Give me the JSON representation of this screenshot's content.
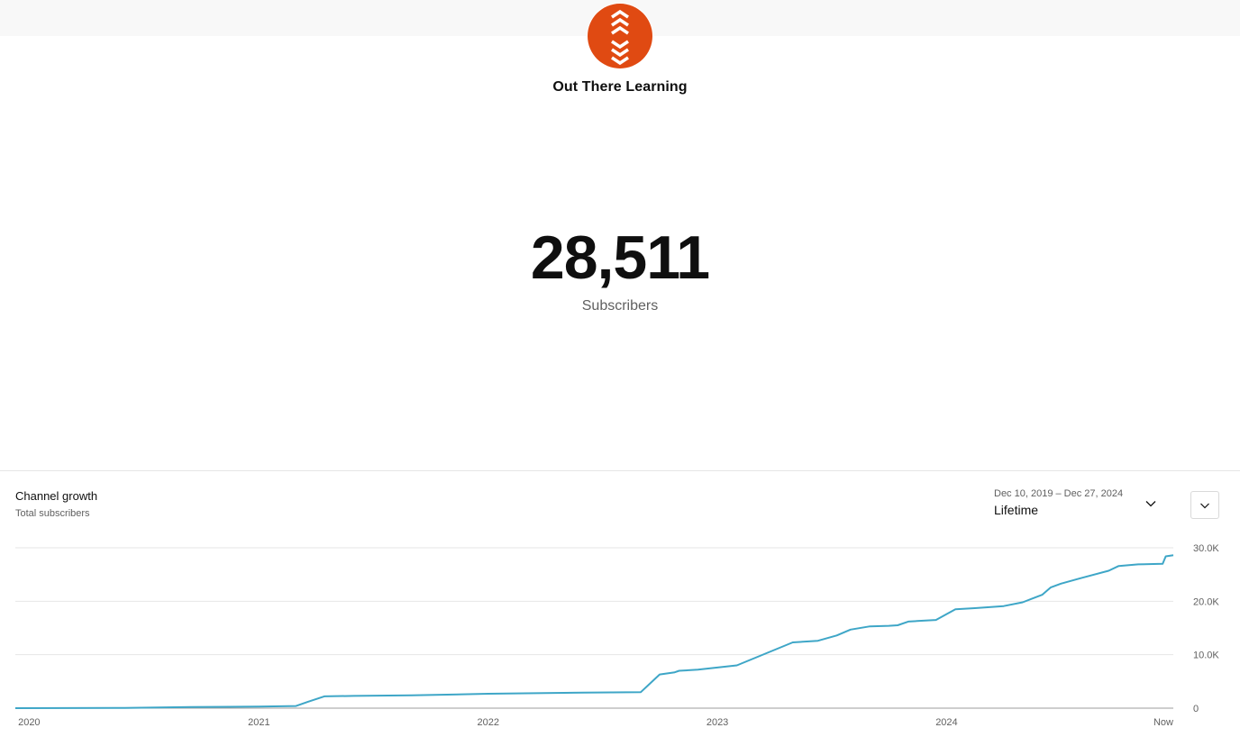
{
  "channel": {
    "name": "Out There Learning",
    "subscriber_count": "28,511",
    "subscriber_label": "Subscribers",
    "avatar_icon": "chevrons-up-down-icon",
    "avatar_color": "#e04a12"
  },
  "growth_card": {
    "title": "Channel growth",
    "subtitle": "Total subscribers",
    "date_range": "Dec 10, 2019 – Dec 27, 2024",
    "period": "Lifetime",
    "dropdown_icon": "chevron-down-icon",
    "expand_icon": "chevron-down-icon"
  },
  "chart_data": {
    "type": "line",
    "title": "",
    "xlabel": "",
    "ylabel": "",
    "ylim": [
      0,
      30000
    ],
    "y_ticks": [
      "0",
      "10.0K",
      "20.0K",
      "30.0K"
    ],
    "x_ticks": [
      "2020",
      "2021",
      "2022",
      "2023",
      "2024",
      "Now"
    ],
    "x_tick_dates": [
      "2020-01-01",
      "2021-01-01",
      "2022-01-01",
      "2023-01-01",
      "2024-01-01",
      "2024-12-27"
    ],
    "grid": true,
    "line_color": "#3ea6c7",
    "series": [
      {
        "x": [
          "2019-12-10",
          "2020-06-01",
          "2020-09-15",
          "2021-01-01",
          "2021-03-01",
          "2021-03-20",
          "2021-04-15",
          "2021-06-01",
          "2021-09-01",
          "2022-01-01",
          "2022-06-01",
          "2022-09-01",
          "2022-10-01",
          "2022-10-25",
          "2022-11-01",
          "2022-12-01",
          "2023-02-01",
          "2023-05-01",
          "2023-06-10",
          "2023-07-10",
          "2023-08-01",
          "2023-09-01",
          "2023-10-01",
          "2023-10-15",
          "2023-11-01",
          "2023-11-15",
          "2023-12-15",
          "2024-01-01",
          "2024-01-15",
          "2024-02-15",
          "2024-04-01",
          "2024-05-01",
          "2024-06-01",
          "2024-06-15",
          "2024-07-01",
          "2024-08-01",
          "2024-09-15",
          "2024-10-01",
          "2024-11-01",
          "2024-12-10",
          "2024-12-15",
          "2024-12-27"
        ],
        "y": [
          0,
          50,
          200,
          300,
          400,
          1200,
          2200,
          2300,
          2400,
          2700,
          2900,
          3000,
          6300,
          6700,
          7000,
          7200,
          8000,
          12300,
          12600,
          13600,
          14700,
          15300,
          15400,
          15500,
          16200,
          16300,
          16500,
          17600,
          18500,
          18700,
          19100,
          19800,
          21200,
          22600,
          23300,
          24300,
          25700,
          26600,
          26900,
          27000,
          28400,
          28600
        ]
      }
    ]
  }
}
